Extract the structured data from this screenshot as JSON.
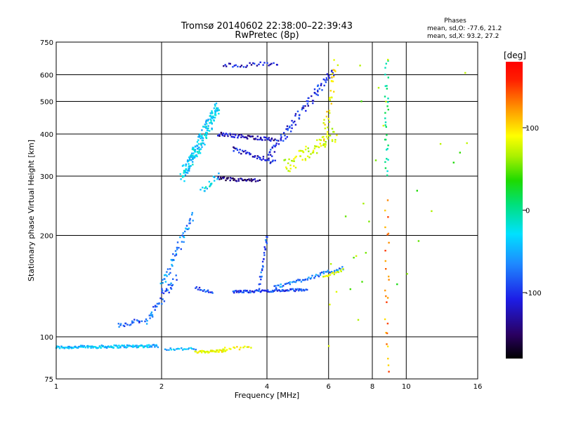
{
  "chart_data": {
    "type": "scatter",
    "title": "Tromsø 20140602 22:38:00–22:39:43",
    "subtitle": "RwPretec (8p)",
    "xlabel": "Frequency [MHz]",
    "ylabel": "Stationary phase Virtual Height [km]",
    "x_scale": "log",
    "y_scale": "log",
    "xlim": [
      1,
      16
    ],
    "ylim": [
      75,
      750
    ],
    "x_ticks": [
      1,
      2,
      4,
      6,
      8,
      10,
      16
    ],
    "y_ticks": [
      75,
      100,
      200,
      300,
      400,
      500,
      600,
      750
    ],
    "grid": true,
    "stats": {
      "heading": "Phases",
      "line1": "mean, sd,O: -77.6, 21.2",
      "line2": "mean, sd,X:  93.2, 27.2"
    },
    "colorbar": {
      "label": "[deg]",
      "ticks": [
        100,
        0,
        -100
      ],
      "range": [
        -180,
        180
      ]
    },
    "traces": [
      {
        "x0": 1.0,
        "x1": 1.95,
        "h0": 93,
        "h1": 94,
        "phase": -55,
        "n": 130,
        "spread": 0.012
      },
      {
        "x0": 2.05,
        "x1": 2.5,
        "h0": 92,
        "h1": 92,
        "phase": -60,
        "n": 20,
        "spread": 0.01
      },
      {
        "x0": 2.5,
        "x1": 3.05,
        "h0": 90,
        "h1": 91,
        "phase": 95,
        "n": 40,
        "spread": 0.01
      },
      {
        "x0": 3.0,
        "x1": 3.6,
        "h0": 92,
        "h1": 93,
        "phase": 90,
        "n": 15,
        "spread": 0.012
      },
      {
        "x0": 1.5,
        "x1": 1.75,
        "h0": 108,
        "h1": 112,
        "phase": -95,
        "n": 20,
        "spread": 0.02
      },
      {
        "x0": 1.8,
        "x1": 2.2,
        "h0": 110,
        "h1": 150,
        "phase": -85,
        "n": 40,
        "spread": 0.04
      },
      {
        "x0": 2.0,
        "x1": 2.45,
        "h0": 140,
        "h1": 230,
        "phase": -75,
        "n": 55,
        "spread": 0.04
      },
      {
        "x0": 2.3,
        "x1": 2.9,
        "h0": 300,
        "h1": 480,
        "phase": -45,
        "n": 180,
        "spread": 0.06
      },
      {
        "x0": 2.6,
        "x1": 2.9,
        "h0": 270,
        "h1": 300,
        "phase": -40,
        "n": 20,
        "spread": 0.03
      },
      {
        "x0": 2.5,
        "x1": 2.8,
        "h0": 140,
        "h1": 135,
        "phase": -100,
        "n": 15,
        "spread": 0.01
      },
      {
        "x0": 3.2,
        "x1": 5.2,
        "h0": 136,
        "h1": 138,
        "phase": -100,
        "n": 80,
        "spread": 0.01
      },
      {
        "x0": 3.8,
        "x1": 4.0,
        "h0": 140,
        "h1": 200,
        "phase": -95,
        "n": 25,
        "spread": 0.02
      },
      {
        "x0": 4.2,
        "x1": 6.6,
        "h0": 140,
        "h1": 160,
        "phase": -80,
        "n": 60,
        "spread": 0.015
      },
      {
        "x0": 5.8,
        "x1": 6.6,
        "h0": 150,
        "h1": 158,
        "phase": 80,
        "n": 15,
        "spread": 0.01
      },
      {
        "x0": 2.9,
        "x1": 4.2,
        "h0": 400,
        "h1": 385,
        "phase": -130,
        "n": 60,
        "spread": 0.015
      },
      {
        "x0": 3.2,
        "x1": 4.2,
        "h0": 360,
        "h1": 330,
        "phase": -120,
        "n": 40,
        "spread": 0.02
      },
      {
        "x0": 2.9,
        "x1": 3.8,
        "h0": 295,
        "h1": 290,
        "phase": -140,
        "n": 40,
        "spread": 0.015
      },
      {
        "x0": 4.0,
        "x1": 6.2,
        "h0": 340,
        "h1": 620,
        "phase": -110,
        "n": 90,
        "spread": 0.04
      },
      {
        "x0": 4.5,
        "x1": 6.3,
        "h0": 320,
        "h1": 400,
        "phase": 80,
        "n": 70,
        "spread": 0.06
      },
      {
        "x0": 5.8,
        "x1": 6.3,
        "h0": 380,
        "h1": 650,
        "phase": 95,
        "n": 35,
        "spread": 0.05
      },
      {
        "x0": 3.0,
        "x1": 4.3,
        "h0": 640,
        "h1": 645,
        "phase": -120,
        "n": 30,
        "spread": 0.02
      },
      {
        "x0": 8.8,
        "x1": 8.8,
        "h0": 300,
        "h1": 650,
        "phase": -10,
        "n": 30,
        "spread": 0.04
      },
      {
        "x0": 8.8,
        "x1": 8.8,
        "h0": 80,
        "h1": 250,
        "phase": 130,
        "n": 25,
        "spread": 0.05
      },
      {
        "x0": 6.5,
        "x1": 8.0,
        "h0": 90,
        "h1": 600,
        "phase": 60,
        "n": 20,
        "spread": 0.4
      },
      {
        "x0": 9.5,
        "x1": 15.5,
        "h0": 160,
        "h1": 480,
        "phase": 50,
        "n": 10,
        "spread": 0.3
      }
    ]
  }
}
